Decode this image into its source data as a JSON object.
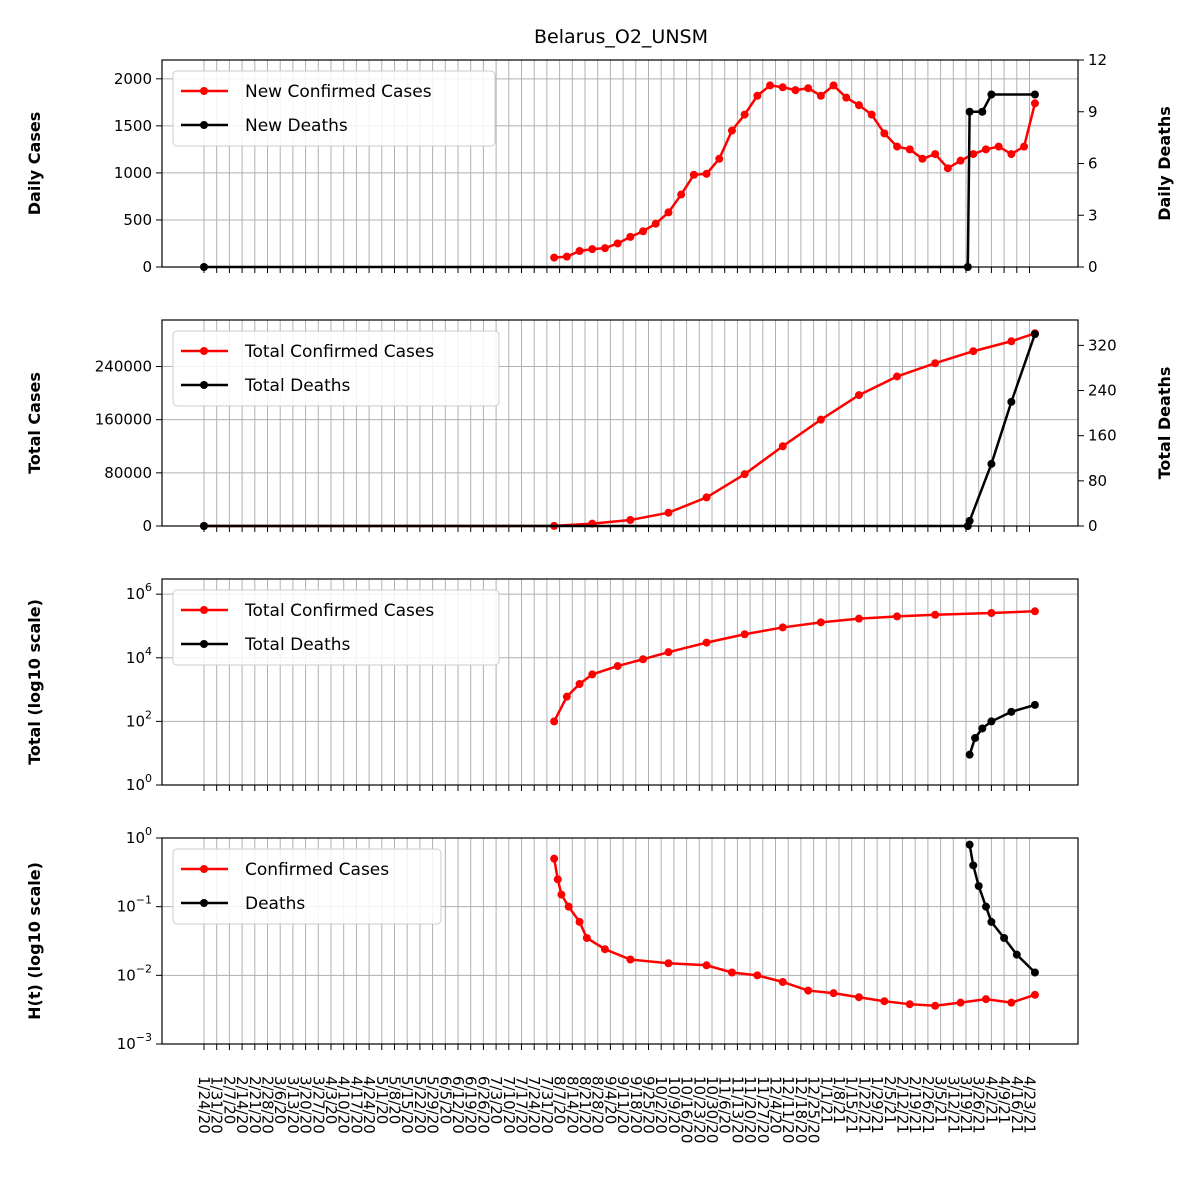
{
  "title": "Belarus_O2_UNSM",
  "colors": {
    "confirmed": "#ff0000",
    "deaths": "#000000",
    "grid": "#b0b0b0"
  },
  "x_date_labels": [
    "1/24/20",
    "1/31/20",
    "2/7/20",
    "2/14/20",
    "2/21/20",
    "2/28/20",
    "3/6/20",
    "3/13/20",
    "3/20/20",
    "3/27/20",
    "4/3/20",
    "4/10/20",
    "4/17/20",
    "4/24/20",
    "5/1/20",
    "5/8/20",
    "5/15/20",
    "5/22/20",
    "5/29/20",
    "6/5/20",
    "6/12/20",
    "6/19/20",
    "6/26/20",
    "7/3/20",
    "7/10/20",
    "7/17/20",
    "7/24/20",
    "7/31/20",
    "8/7/20",
    "8/14/20",
    "8/21/20",
    "8/28/20",
    "9/4/20",
    "9/11/20",
    "9/18/20",
    "9/25/20",
    "10/2/20",
    "10/9/20",
    "10/16/20",
    "10/23/20",
    "10/30/20",
    "11/6/20",
    "11/13/20",
    "11/20/20",
    "11/27/20",
    "12/4/20",
    "12/11/20",
    "12/18/20",
    "12/25/20",
    "1/1/21",
    "1/8/21",
    "1/15/21",
    "1/22/21",
    "1/29/21",
    "2/5/21",
    "2/12/21",
    "2/19/21",
    "2/26/21",
    "3/5/21",
    "3/12/21",
    "3/19/21",
    "3/26/21",
    "4/2/21",
    "4/9/21",
    "4/16/21",
    "4/23/21"
  ],
  "chart_data": [
    {
      "type": "line",
      "ylabel": "Daily Cases",
      "ylabel_right": "Daily Deaths",
      "ylim": [
        0,
        2200
      ],
      "ylim_right": [
        0,
        12
      ],
      "yticks": [
        "0",
        "500",
        "1000",
        "1500",
        "2000"
      ],
      "yticks_right": [
        "0",
        "3",
        "6",
        "9",
        "12"
      ],
      "legend": [
        "New Confirmed Cases",
        "New Deaths"
      ],
      "legend_position": "upper-left",
      "series": [
        {
          "name": "New Confirmed Cases",
          "axis": "left",
          "points": [
            [
              "8/4/20",
              100
            ],
            [
              "8/11/20",
              110
            ],
            [
              "8/18/20",
              170
            ],
            [
              "8/25/20",
              190
            ],
            [
              "9/1/20",
              200
            ],
            [
              "9/8/20",
              250
            ],
            [
              "9/15/20",
              320
            ],
            [
              "9/22/20",
              380
            ],
            [
              "9/29/20",
              460
            ],
            [
              "10/6/20",
              580
            ],
            [
              "10/13/20",
              770
            ],
            [
              "10/20/20",
              980
            ],
            [
              "10/27/20",
              990
            ],
            [
              "11/3/20",
              1150
            ],
            [
              "11/10/20",
              1450
            ],
            [
              "11/17/20",
              1620
            ],
            [
              "11/24/20",
              1820
            ],
            [
              "12/1/20",
              1930
            ],
            [
              "12/8/20",
              1910
            ],
            [
              "12/15/20",
              1880
            ],
            [
              "12/22/20",
              1900
            ],
            [
              "12/29/20",
              1820
            ],
            [
              "1/5/21",
              1930
            ],
            [
              "1/12/21",
              1800
            ],
            [
              "1/19/21",
              1720
            ],
            [
              "1/26/21",
              1620
            ],
            [
              "2/2/21",
              1420
            ],
            [
              "2/9/21",
              1280
            ],
            [
              "2/16/21",
              1250
            ],
            [
              "2/23/21",
              1150
            ],
            [
              "3/2/21",
              1200
            ],
            [
              "3/9/21",
              1050
            ],
            [
              "3/16/21",
              1130
            ],
            [
              "3/23/21",
              1200
            ],
            [
              "3/30/21",
              1250
            ],
            [
              "4/6/21",
              1280
            ],
            [
              "4/13/21",
              1200
            ],
            [
              "4/20/21",
              1280
            ],
            [
              "4/26/21",
              1740
            ]
          ]
        },
        {
          "name": "New Deaths",
          "axis": "right",
          "points": [
            [
              "1/24/20",
              0
            ],
            [
              "3/20/21",
              0
            ],
            [
              "3/21/21",
              9
            ],
            [
              "3/28/21",
              9
            ],
            [
              "4/2/21",
              10
            ],
            [
              "4/26/21",
              10
            ]
          ]
        }
      ]
    },
    {
      "type": "line",
      "ylabel": "Total Cases",
      "ylabel_right": "Total Deaths",
      "ylim": [
        0,
        310000
      ],
      "ylim_right": [
        0,
        365
      ],
      "yticks": [
        "0",
        "80000",
        "160000",
        "240000"
      ],
      "yticks_right": [
        "0",
        "80",
        "160",
        "240",
        "320"
      ],
      "legend": [
        "Total Confirmed Cases",
        "Total Deaths"
      ],
      "legend_position": "upper-left",
      "series": [
        {
          "name": "Total Confirmed Cases",
          "axis": "left",
          "points": [
            [
              "1/24/20",
              0
            ],
            [
              "8/4/20",
              100
            ],
            [
              "8/25/20",
              3500
            ],
            [
              "9/15/20",
              9000
            ],
            [
              "10/6/20",
              20000
            ],
            [
              "10/27/20",
              43000
            ],
            [
              "11/17/20",
              78000
            ],
            [
              "12/8/20",
              120000
            ],
            [
              "12/29/20",
              160000
            ],
            [
              "1/19/21",
              197000
            ],
            [
              "2/9/21",
              225000
            ],
            [
              "3/2/21",
              245000
            ],
            [
              "3/23/21",
              263000
            ],
            [
              "4/13/21",
              278000
            ],
            [
              "4/26/21",
              290000
            ]
          ]
        },
        {
          "name": "Total Deaths",
          "axis": "right",
          "points": [
            [
              "1/24/20",
              0
            ],
            [
              "3/20/21",
              0
            ],
            [
              "3/21/21",
              9
            ],
            [
              "4/2/21",
              110
            ],
            [
              "4/13/21",
              220
            ],
            [
              "4/26/21",
              340
            ]
          ]
        }
      ]
    },
    {
      "type": "line",
      "scale": "log10",
      "ylabel": "Total (log10 scale)",
      "ylim": [
        1,
        3000000
      ],
      "yticks": [
        "10^0",
        "10^2",
        "10^4",
        "10^6"
      ],
      "legend": [
        "Total Confirmed Cases",
        "Total Deaths"
      ],
      "legend_position": "upper-left",
      "series": [
        {
          "name": "Total Confirmed Cases",
          "points": [
            [
              "8/4/20",
              100
            ],
            [
              "8/11/20",
              600
            ],
            [
              "8/18/20",
              1500
            ],
            [
              "8/25/20",
              3000
            ],
            [
              "9/8/20",
              5500
            ],
            [
              "9/22/20",
              9000
            ],
            [
              "10/6/20",
              15000
            ],
            [
              "10/27/20",
              30000
            ],
            [
              "11/17/20",
              55000
            ],
            [
              "12/8/20",
              90000
            ],
            [
              "12/29/20",
              130000
            ],
            [
              "1/19/21",
              170000
            ],
            [
              "2/9/21",
              200000
            ],
            [
              "3/2/21",
              225000
            ],
            [
              "4/2/21",
              255000
            ],
            [
              "4/26/21",
              290000
            ]
          ]
        },
        {
          "name": "Total Deaths",
          "points": [
            [
              "3/21/21",
              9
            ],
            [
              "3/24/21",
              30
            ],
            [
              "3/28/21",
              60
            ],
            [
              "4/2/21",
              100
            ],
            [
              "4/13/21",
              200
            ],
            [
              "4/26/21",
              330
            ]
          ]
        }
      ]
    },
    {
      "type": "line",
      "scale": "log10",
      "ylabel": "H(t) (log10 scale)",
      "ylim": [
        0.001,
        1
      ],
      "yticks": [
        "10^-3",
        "10^-2",
        "10^-1",
        "10^0"
      ],
      "legend": [
        "Confirmed Cases",
        "Deaths"
      ],
      "legend_position": "upper-left",
      "series": [
        {
          "name": "Confirmed Cases",
          "points": [
            [
              "8/4/20",
              0.5
            ],
            [
              "8/6/20",
              0.25
            ],
            [
              "8/8/20",
              0.15
            ],
            [
              "8/12/20",
              0.1
            ],
            [
              "8/18/20",
              0.06
            ],
            [
              "8/22/20",
              0.035
            ],
            [
              "9/1/20",
              0.024
            ],
            [
              "9/15/20",
              0.017
            ],
            [
              "10/6/20",
              0.015
            ],
            [
              "10/27/20",
              0.014
            ],
            [
              "11/10/20",
              0.011
            ],
            [
              "11/24/20",
              0.01
            ],
            [
              "12/8/20",
              0.008
            ],
            [
              "12/22/20",
              0.006
            ],
            [
              "1/5/21",
              0.0055
            ],
            [
              "1/19/21",
              0.0048
            ],
            [
              "2/2/21",
              0.0042
            ],
            [
              "2/16/21",
              0.0038
            ],
            [
              "3/2/21",
              0.0036
            ],
            [
              "3/16/21",
              0.004
            ],
            [
              "3/30/21",
              0.0045
            ],
            [
              "4/13/21",
              0.004
            ],
            [
              "4/26/21",
              0.0052
            ]
          ]
        },
        {
          "name": "Deaths",
          "points": [
            [
              "3/21/21",
              0.8
            ],
            [
              "3/23/21",
              0.4
            ],
            [
              "3/26/21",
              0.2
            ],
            [
              "3/30/21",
              0.1
            ],
            [
              "4/2/21",
              0.06
            ],
            [
              "4/9/21",
              0.035
            ],
            [
              "4/16/21",
              0.02
            ],
            [
              "4/26/21",
              0.011
            ]
          ]
        }
      ]
    }
  ]
}
